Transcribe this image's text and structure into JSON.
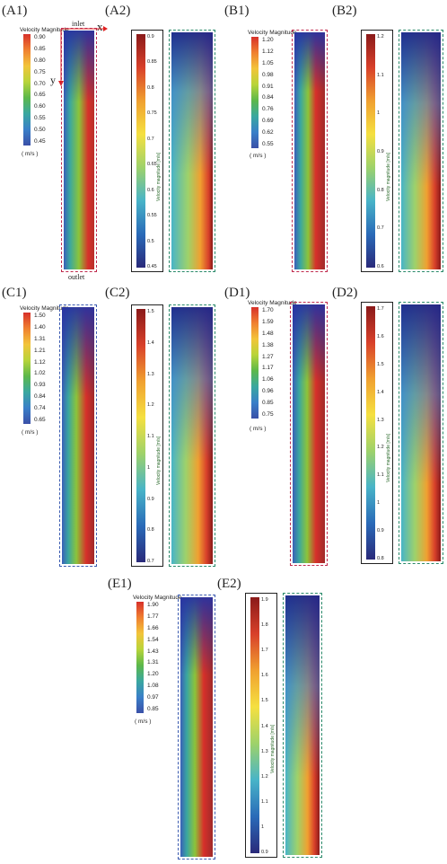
{
  "panels": {
    "A1": {
      "label": "(A1)",
      "legend_title": "Velocity Magnitude",
      "ticks": [
        "0.90",
        "0.85",
        "0.80",
        "0.75",
        "0.70",
        "0.65",
        "0.60",
        "0.55",
        "0.50",
        "0.45"
      ],
      "unit": "( m/s )",
      "inlet": "inlet",
      "outlet": "outlet",
      "x_axis": "x",
      "y_axis": "y"
    },
    "A2": {
      "label": "(A2)",
      "ticks": [
        "0.9",
        "0.85",
        "0.8",
        "0.75",
        "0.7",
        "0.65",
        "0.6",
        "0.55",
        "0.5",
        "0.45"
      ],
      "axis_label": "Velocity magnitude [m/s]"
    },
    "B1": {
      "label": "(B1)",
      "legend_title": "Velocity Magnitude",
      "ticks": [
        "1.20",
        "1.12",
        "1.05",
        "0.98",
        "0.91",
        "0.84",
        "0.76",
        "0.69",
        "0.62",
        "0.55"
      ],
      "unit": "( m/s )"
    },
    "B2": {
      "label": "(B2)",
      "ticks": [
        "1.2",
        "1.1",
        "1",
        "0.9",
        "0.8",
        "0.7",
        "0.6"
      ],
      "axis_label": "Velocity magnitude [m/s]"
    },
    "C1": {
      "label": "(C1)",
      "legend_title": "Velocity Magnitude",
      "ticks": [
        "1.50",
        "1.40",
        "1.31",
        "1.21",
        "1.12",
        "1.02",
        "0.93",
        "0.84",
        "0.74",
        "0.65"
      ],
      "unit": "( m/s )"
    },
    "C2": {
      "label": "(C2)",
      "ticks": [
        "1.5",
        "1.4",
        "1.3",
        "1.2",
        "1.1",
        "1",
        "0.9",
        "0.8",
        "0.7"
      ],
      "axis_label": "Velocity magnitude [m/s]"
    },
    "D1": {
      "label": "(D1)",
      "legend_title": "Velocity Magnitude",
      "ticks": [
        "1.70",
        "1.59",
        "1.48",
        "1.38",
        "1.27",
        "1.17",
        "1.06",
        "0.96",
        "0.85",
        "0.75"
      ],
      "unit": "( m/s )"
    },
    "D2": {
      "label": "(D2)",
      "ticks": [
        "1.7",
        "1.6",
        "1.5",
        "1.4",
        "1.3",
        "1.2",
        "1.1",
        "1",
        "0.9",
        "0.8"
      ],
      "axis_label": "Velocity magnitude [m/s]"
    },
    "E1": {
      "label": "(E1)",
      "legend_title": "Velocity Magnitude",
      "ticks": [
        "1.90",
        "1.77",
        "1.66",
        "1.54",
        "1.43",
        "1.31",
        "1.20",
        "1.08",
        "0.97",
        "0.85"
      ],
      "unit": "( m/s )"
    },
    "E2": {
      "label": "(E2)",
      "ticks": [
        "1.9",
        "1.8",
        "1.7",
        "1.6",
        "1.5",
        "1.4",
        "1.3",
        "1.2",
        "1.1",
        "1",
        "0.9"
      ],
      "axis_label": "Velocity magnitude [m/s]"
    }
  },
  "colors": {
    "cfd_scale": [
      "#d7302a",
      "#f08030",
      "#f2c43a",
      "#b8d43a",
      "#5cb84a",
      "#3aa7a0",
      "#3a7fc8",
      "#3a50a8"
    ],
    "piv_scale": [
      "#8a1a1a",
      "#d8402a",
      "#f0a030",
      "#f5e040",
      "#9ed26a",
      "#48b4c8",
      "#2a6ab8",
      "#2a2a7a"
    ]
  }
}
